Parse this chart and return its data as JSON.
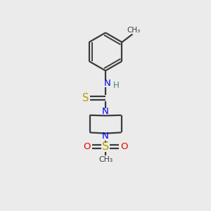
{
  "bg_color": "#ebebeb",
  "bond_color": "#3a3a3a",
  "N_color": "#0000ee",
  "S_color": "#b8a000",
  "O_color": "#ee0000",
  "C_color": "#3a3a3a",
  "NH_color": "#4a8080",
  "line_width": 1.6,
  "fig_size": [
    3.0,
    3.0
  ],
  "dpi": 100,
  "xlim": [
    0,
    10
  ],
  "ylim": [
    0,
    10
  ]
}
